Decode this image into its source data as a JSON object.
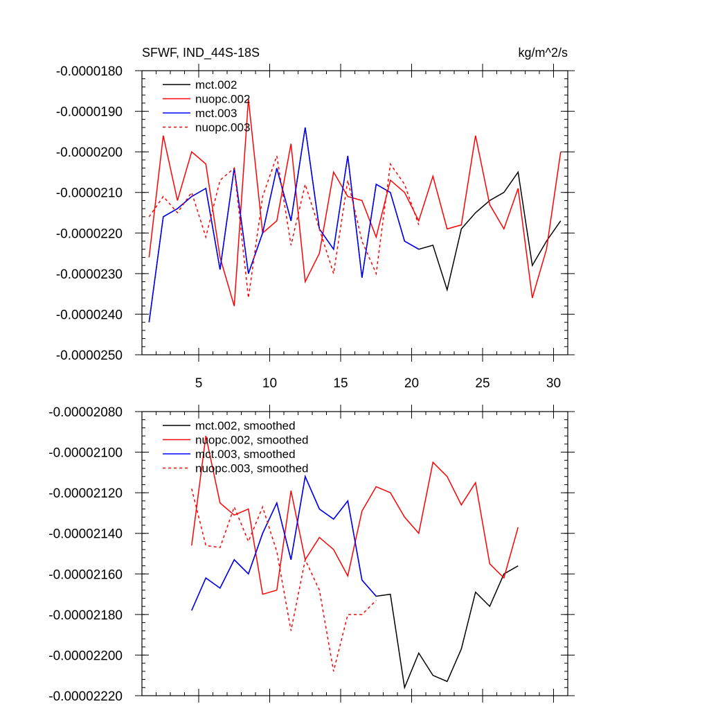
{
  "chart_data": [
    {
      "type": "line",
      "title": "SFWF, IND_44S-18S",
      "units": "kg/m^2/s",
      "xlim": [
        1,
        31
      ],
      "ylim": [
        -2.5e-05,
        -1.8e-05
      ],
      "x_ticks": [
        5,
        10,
        15,
        20,
        25,
        30
      ],
      "x_tick_labels": [
        "5",
        "10",
        "15",
        "20",
        "25",
        "30"
      ],
      "y_ticks": [
        -1.8e-05,
        -1.9e-05,
        -2e-05,
        -2.1e-05,
        -2.2e-05,
        -2.3e-05,
        -2.4e-05,
        -2.5e-05
      ],
      "y_tick_labels": [
        "-0.0000180",
        "-0.0000190",
        "-0.0000200",
        "-0.0000210",
        "-0.0000220",
        "-0.0000230",
        "-0.0000240",
        "-0.0000250"
      ],
      "legend_position": "top-left",
      "series": [
        {
          "name": "mct.002",
          "color": "#000000",
          "dash": "solid",
          "x": [
            1.5,
            2.5,
            3.5,
            4.5,
            5.5,
            6.5,
            7.5,
            8.5,
            9.5,
            10.5,
            11.5,
            12.5,
            13.5,
            14.5,
            15.5,
            16.5,
            17.5,
            18.5,
            19.5,
            20.5,
            21.5,
            22.5,
            23.5,
            24.5,
            25.5,
            26.5,
            27.5,
            28.5,
            29.5,
            30.5
          ],
          "values": [
            -2.42e-05,
            -2.16e-05,
            -2.14e-05,
            -2.11e-05,
            -2.09e-05,
            -2.29e-05,
            -2.04e-05,
            -2.3e-05,
            -2.2e-05,
            -2.04e-05,
            -2.17e-05,
            -1.94e-05,
            -2.19e-05,
            -2.24e-05,
            -2.01e-05,
            -2.31e-05,
            -2.08e-05,
            -2.1e-05,
            -2.22e-05,
            -2.24e-05,
            -2.23e-05,
            -2.34e-05,
            -2.19e-05,
            -2.15e-05,
            -2.12e-05,
            -2.1e-05,
            -2.05e-05,
            -2.28e-05,
            -2.22e-05,
            -2.17e-05
          ]
        },
        {
          "name": "nuopc.002",
          "color": "#ff0000",
          "dash": "solid",
          "x": [
            1.5,
            2.5,
            3.5,
            4.5,
            5.5,
            6.5,
            7.5,
            8.5,
            9.5,
            10.5,
            11.5,
            12.5,
            13.5,
            14.5,
            15.5,
            16.5,
            17.5,
            18.5,
            19.5,
            20.5,
            21.5,
            22.5,
            23.5,
            24.5,
            25.5,
            26.5,
            27.5,
            28.5,
            29.5,
            30.5
          ],
          "values": [
            -2.26e-05,
            -1.96e-05,
            -2.12e-05,
            -2e-05,
            -2.03e-05,
            -2.26e-05,
            -2.38e-05,
            -1.87e-05,
            -2.2e-05,
            -2.17e-05,
            -1.98e-05,
            -2.32e-05,
            -2.25e-05,
            -2.05e-05,
            -2.11e-05,
            -2.12e-05,
            -2.21e-05,
            -2.07e-05,
            -2.1e-05,
            -2.17e-05,
            -2.06e-05,
            -2.19e-05,
            -2.18e-05,
            -1.96e-05,
            -2.13e-05,
            -2.19e-05,
            -2.09e-05,
            -2.36e-05,
            -2.24e-05,
            -2e-05
          ]
        },
        {
          "name": "mct.003",
          "color": "#0000ff",
          "dash": "solid",
          "x": [
            1.5,
            2.5,
            3.5,
            4.5,
            5.5,
            6.5,
            7.5,
            8.5,
            9.5,
            10.5,
            11.5,
            12.5,
            13.5,
            14.5,
            15.5,
            16.5,
            17.5,
            18.5,
            19.5,
            20.5
          ],
          "values": [
            -2.42e-05,
            -2.16e-05,
            -2.14e-05,
            -2.11e-05,
            -2.09e-05,
            -2.29e-05,
            -2.04e-05,
            -2.3e-05,
            -2.2e-05,
            -2.04e-05,
            -2.17e-05,
            -1.94e-05,
            -2.19e-05,
            -2.24e-05,
            -2.01e-05,
            -2.31e-05,
            -2.08e-05,
            -2.1e-05,
            -2.22e-05,
            -2.24e-05
          ]
        },
        {
          "name": "nuopc.003",
          "color": "#ff0000",
          "dash": "dashed",
          "x": [
            1.5,
            2.5,
            3.5,
            4.5,
            5.5,
            6.5,
            7.5,
            8.5,
            9.5,
            10.5,
            11.5,
            12.5,
            13.5,
            14.5,
            15.5,
            16.5,
            17.5,
            18.5,
            19.5,
            20.5
          ],
          "values": [
            -2.16e-05,
            -2.11e-05,
            -2.15e-05,
            -2.1e-05,
            -2.21e-05,
            -2.07e-05,
            -2.04e-05,
            -2.36e-05,
            -2.11e-05,
            -2.01e-05,
            -2.23e-05,
            -2.08e-05,
            -2.19e-05,
            -2.3e-05,
            -2.07e-05,
            -2.22e-05,
            -2.3e-05,
            -2.03e-05,
            -2.08e-05,
            -2.18e-05
          ]
        }
      ]
    },
    {
      "type": "line",
      "title": "",
      "xlim": [
        1,
        31
      ],
      "ylim": [
        -2.22e-05,
        -2.08e-05
      ],
      "x_ticks": [
        5,
        10,
        15,
        20,
        25,
        30
      ],
      "x_tick_labels": [],
      "y_ticks": [
        -2.08e-05,
        -2.1e-05,
        -2.12e-05,
        -2.14e-05,
        -2.16e-05,
        -2.18e-05,
        -2.2e-05,
        -2.22e-05
      ],
      "y_tick_labels": [
        "-0.00002080",
        "-0.00002100",
        "-0.00002120",
        "-0.00002140",
        "-0.00002160",
        "-0.00002180",
        "-0.00002200",
        "-0.00002220"
      ],
      "legend_position": "top-left",
      "series": [
        {
          "name": "mct.002, smoothed",
          "color": "#000000",
          "dash": "solid",
          "x": [
            4.5,
            5.5,
            6.5,
            7.5,
            8.5,
            9.5,
            10.5,
            11.5,
            12.5,
            13.5,
            14.5,
            15.5,
            16.5,
            17.5,
            18.5,
            19.5,
            20.5,
            21.5,
            22.5,
            23.5,
            24.5,
            25.5,
            26.5,
            27.5
          ],
          "values": [
            -2.178e-05,
            -2.162e-05,
            -2.167e-05,
            -2.153e-05,
            -2.16e-05,
            -2.14e-05,
            -2.125e-05,
            -2.153e-05,
            -2.112e-05,
            -2.128e-05,
            -2.133e-05,
            -2.124e-05,
            -2.163e-05,
            -2.171e-05,
            -2.17e-05,
            -2.216e-05,
            -2.199e-05,
            -2.21e-05,
            -2.213e-05,
            -2.197e-05,
            -2.169e-05,
            -2.176e-05,
            -2.16e-05,
            -2.156e-05
          ]
        },
        {
          "name": "nuopc.002, smoothed",
          "color": "#ff0000",
          "dash": "solid",
          "x": [
            4.5,
            5.5,
            6.5,
            7.5,
            8.5,
            9.5,
            10.5,
            11.5,
            12.5,
            13.5,
            14.5,
            15.5,
            16.5,
            17.5,
            18.5,
            19.5,
            20.5,
            21.5,
            22.5,
            23.5,
            24.5,
            25.5,
            26.5,
            27.5
          ],
          "values": [
            -2.146e-05,
            -2.092e-05,
            -2.125e-05,
            -2.131e-05,
            -2.128e-05,
            -2.17e-05,
            -2.168e-05,
            -2.119e-05,
            -2.153e-05,
            -2.142e-05,
            -2.148e-05,
            -2.161e-05,
            -2.129e-05,
            -2.117e-05,
            -2.12e-05,
            -2.132e-05,
            -2.14e-05,
            -2.105e-05,
            -2.112e-05,
            -2.126e-05,
            -2.115e-05,
            -2.155e-05,
            -2.162e-05,
            -2.137e-05
          ]
        },
        {
          "name": "mct.003, smoothed",
          "color": "#0000ff",
          "dash": "solid",
          "x": [
            4.5,
            5.5,
            6.5,
            7.5,
            8.5,
            9.5,
            10.5,
            11.5,
            12.5,
            13.5,
            14.5,
            15.5,
            16.5,
            17.5
          ],
          "values": [
            -2.178e-05,
            -2.162e-05,
            -2.167e-05,
            -2.153e-05,
            -2.16e-05,
            -2.14e-05,
            -2.125e-05,
            -2.153e-05,
            -2.112e-05,
            -2.128e-05,
            -2.133e-05,
            -2.124e-05,
            -2.163e-05,
            -2.171e-05
          ]
        },
        {
          "name": "nuopc.003, smoothed",
          "color": "#ff0000",
          "dash": "dashed",
          "x": [
            4.5,
            5.5,
            6.5,
            7.5,
            8.5,
            9.5,
            10.5,
            11.5,
            12.5,
            13.5,
            14.5,
            15.5,
            16.5,
            17.5
          ],
          "values": [
            -2.118e-05,
            -2.146e-05,
            -2.147e-05,
            -2.127e-05,
            -2.144e-05,
            -2.127e-05,
            -2.149e-05,
            -2.188e-05,
            -2.153e-05,
            -2.168e-05,
            -2.208e-05,
            -2.18e-05,
            -2.18e-05,
            -2.173e-05
          ]
        }
      ]
    }
  ]
}
